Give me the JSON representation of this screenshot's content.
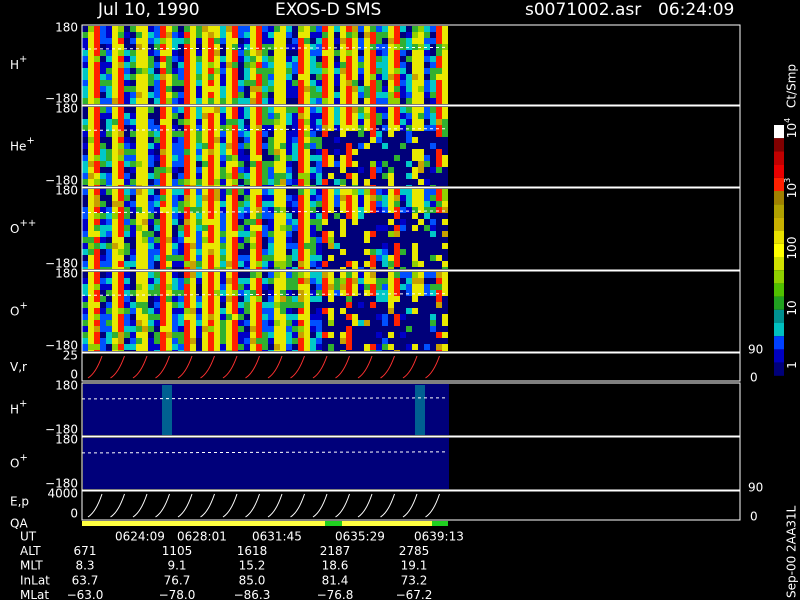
{
  "header": {
    "date": "Jul 10, 1990",
    "instrument": "EXOS-D SMS",
    "file": "s0071002.asr",
    "time": "06:24:09"
  },
  "panels": [
    {
      "label": "H",
      "sup": "+",
      "top": "180",
      "bottom": "−180"
    },
    {
      "label": "He",
      "sup": "+",
      "top": "180",
      "bottom": "−180"
    },
    {
      "label": "O",
      "sup": "++",
      "top": "180",
      "bottom": "−180"
    },
    {
      "label": "O",
      "sup": "+",
      "top": "180",
      "bottom": "−180"
    },
    {
      "label": "V,r",
      "top": "25",
      "bottom": "0",
      "right_top": "90",
      "right_bottom": "0"
    },
    {
      "label": "H",
      "sup": "+",
      "top": "180",
      "bottom": "−180"
    },
    {
      "label": "O",
      "sup": "+",
      "top": "180",
      "bottom": "−180"
    },
    {
      "label": "E,p",
      "label2": "QA",
      "top": "4000",
      "bottom": "0",
      "right_top": "90",
      "right_bottom": "0"
    }
  ],
  "colorbar": {
    "unit": "Ct/Smp",
    "labels": [
      {
        "base": "10",
        "sup": "4"
      },
      {
        "base": "10",
        "sup": "3"
      },
      {
        "base": "100"
      },
      {
        "base": "10"
      },
      {
        "base": "1"
      }
    ]
  },
  "table": {
    "rows": [
      [
        "UT",
        "0624:09",
        "0628:01",
        "0631:45",
        "0635:29",
        "0639:13"
      ],
      [
        "ALT",
        "671",
        "1105",
        "1618",
        "2187",
        "2785"
      ],
      [
        "MLT",
        "8.3",
        "9.1",
        "15.2",
        "18.6",
        "19.1"
      ],
      [
        "InLat",
        "63.7",
        "76.7",
        "85.0",
        "81.4",
        "73.2"
      ],
      [
        "MLat",
        "−63.0",
        "−78.0",
        "−86.3",
        "−76.8",
        "−67.2"
      ]
    ]
  },
  "footer": "Sep-00 2AA31L"
}
